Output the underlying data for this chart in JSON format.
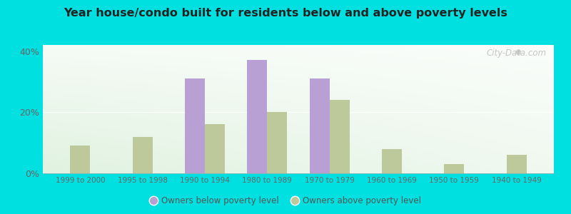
{
  "title": "Year house/condo built for residents below and above poverty levels",
  "categories": [
    "1999 to 2000",
    "1995 to 1998",
    "1990 to 1994",
    "1980 to 1989",
    "1970 to 1979",
    "1960 to 1969",
    "1950 to 1959",
    "1940 to 1949"
  ],
  "below_poverty": [
    0,
    0,
    31,
    37,
    31,
    0,
    0,
    0
  ],
  "above_poverty": [
    9,
    12,
    16,
    20,
    24,
    8,
    3,
    6
  ],
  "below_color": "#b89fd4",
  "above_color": "#bdc99a",
  "outer_bg": "#00e0e0",
  "ylabel_ticks": [
    "0%",
    "20%",
    "40%"
  ],
  "ytick_vals": [
    0,
    20,
    40
  ],
  "ylim": [
    0,
    42
  ],
  "bar_width": 0.32,
  "legend_below_label": "Owners below poverty level",
  "legend_above_label": "Owners above poverty level",
  "watermark": "City-Data.com"
}
